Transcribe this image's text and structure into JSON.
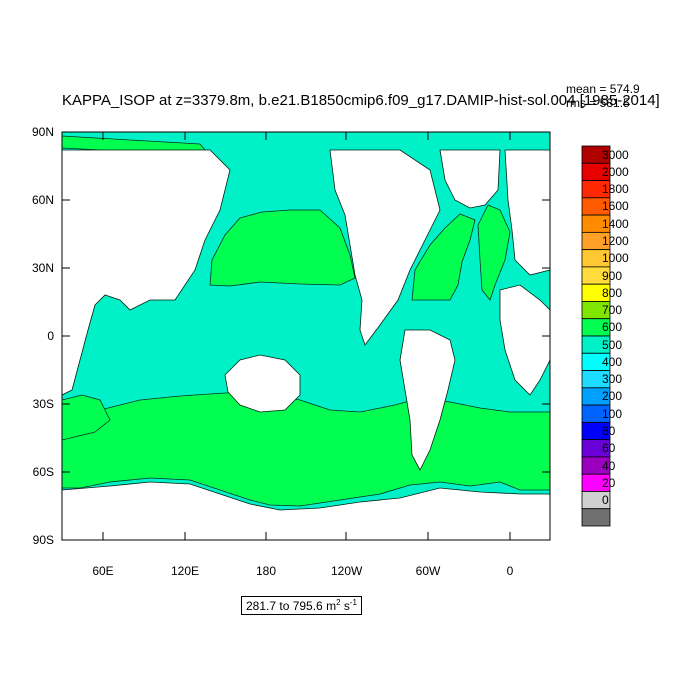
{
  "title": "KAPPA_ISOP at z=3379.8m, b.e21.B1850cmip6.f09_g17.DAMIP-hist-sol.004 [1985-2014]",
  "stats": {
    "mean": "mean = 574.9",
    "rms": "rms = 581.5"
  },
  "range": {
    "text": "281.7 to 795.6 m",
    "unit_exp1": "2",
    "unit_mid": " s",
    "unit_exp2": "-1"
  },
  "lat_labels": [
    "90N",
    "60N",
    "30N",
    "0",
    "30S",
    "60S",
    "90S"
  ],
  "lon_labels": [
    "60E",
    "120E",
    "180",
    "120W",
    "60W",
    "0"
  ],
  "colorbar": {
    "labels": [
      "3000",
      "2000",
      "1800",
      "1600",
      "1400",
      "1200",
      "1000",
      "900",
      "800",
      "700",
      "600",
      "500",
      "400",
      "300",
      "200",
      "100",
      "80",
      "60",
      "40",
      "20",
      "0"
    ],
    "colors": [
      "#b00000",
      "#e60000",
      "#ff2800",
      "#ff5a00",
      "#ff8c00",
      "#ffa028",
      "#ffc832",
      "#ffdc3c",
      "#ffff00",
      "#80e600",
      "#00ff50",
      "#00f0c8",
      "#00ffff",
      "#1edcff",
      "#00a0ff",
      "#0064ff",
      "#0000ff",
      "#6a00d8",
      "#9b00c0",
      "#ff00ff",
      "#d0d0d0",
      "#707070"
    ]
  },
  "map_colors": {
    "ocean_600": "#00ff50",
    "ocean_500": "#00f0c8",
    "ocean_400": "#00ffff",
    "land": "#ffffff"
  }
}
